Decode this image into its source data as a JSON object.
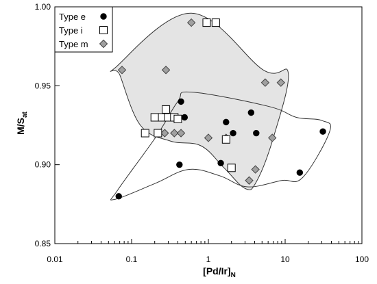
{
  "chart_data": {
    "type": "scatter",
    "title": "",
    "xlabel": {
      "main": "[Pd/Ir]",
      "sub": "N"
    },
    "ylabel": {
      "main": "M/S",
      "sub": "at"
    },
    "x_scale": "log",
    "xlim": [
      0.01,
      100
    ],
    "ylim": [
      0.85,
      1.0
    ],
    "x_ticks": [
      0.01,
      0.1,
      1,
      10,
      100
    ],
    "x_tick_labels": [
      "0.01",
      "0.1",
      "1",
      "10",
      "100"
    ],
    "y_ticks": [
      0.85,
      0.9,
      0.95,
      1.0
    ],
    "y_tick_labels": [
      "0.85",
      "0.90",
      "0.95",
      "1.00"
    ],
    "grid": false,
    "legend_position": "top-left",
    "series": [
      {
        "name": "Type e",
        "marker": "circle",
        "color": "#000000",
        "points": [
          [
            0.068,
            0.88
          ],
          [
            0.42,
            0.9
          ],
          [
            0.44,
            0.94
          ],
          [
            0.49,
            0.93
          ],
          [
            1.45,
            0.901
          ],
          [
            1.7,
            0.927
          ],
          [
            2.1,
            0.92
          ],
          [
            3.6,
            0.933
          ],
          [
            4.2,
            0.92
          ],
          [
            15.5,
            0.895
          ],
          [
            31.0,
            0.921
          ]
        ]
      },
      {
        "name": "Type i",
        "marker": "square",
        "color": "#000000",
        "points": [
          [
            0.15,
            0.92
          ],
          [
            0.2,
            0.93
          ],
          [
            0.22,
            0.92
          ],
          [
            0.25,
            0.93
          ],
          [
            0.28,
            0.935
          ],
          [
            0.3,
            0.93
          ],
          [
            0.36,
            0.93
          ],
          [
            0.4,
            0.929
          ],
          [
            0.95,
            0.99
          ],
          [
            1.25,
            0.99
          ],
          [
            1.7,
            0.916
          ],
          [
            2.0,
            0.898
          ]
        ]
      },
      {
        "name": "Type m",
        "marker": "diamond",
        "color": "#a0a0a0",
        "points": [
          [
            0.075,
            0.96
          ],
          [
            0.27,
            0.92
          ],
          [
            0.28,
            0.96
          ],
          [
            0.36,
            0.92
          ],
          [
            0.44,
            0.92
          ],
          [
            0.6,
            0.99
          ],
          [
            1.0,
            0.917
          ],
          [
            1.7,
            0.917
          ],
          [
            3.4,
            0.89
          ],
          [
            4.1,
            0.897
          ],
          [
            5.5,
            0.952
          ],
          [
            6.8,
            0.917
          ],
          [
            8.8,
            0.952
          ]
        ]
      }
    ],
    "regions": [
      {
        "label_series": "Type m",
        "fill": "#e4e4e4",
        "vertices": [
          [
            0.063,
            0.962
          ],
          [
            0.6,
            0.996
          ],
          [
            5.2,
            0.96
          ],
          [
            11.0,
            0.958
          ],
          [
            7.0,
            0.917
          ],
          [
            4.2,
            0.889
          ],
          [
            3.0,
            0.885
          ],
          [
            1.6,
            0.898
          ],
          [
            0.8,
            0.912
          ],
          [
            0.32,
            0.915
          ],
          [
            0.13,
            0.925
          ],
          [
            0.07,
            0.957
          ]
        ]
      },
      {
        "label_series": "Type e",
        "fill": "none",
        "vertices": [
          [
            0.06,
            0.878
          ],
          [
            0.2,
            0.888
          ],
          [
            0.55,
            0.897
          ],
          [
            1.4,
            0.893
          ],
          [
            3.2,
            0.886
          ],
          [
            9.0,
            0.89
          ],
          [
            17.0,
            0.892
          ],
          [
            38.0,
            0.921
          ],
          [
            30.0,
            0.928
          ],
          [
            14.0,
            0.93
          ],
          [
            6.0,
            0.937
          ],
          [
            0.6,
            0.946
          ],
          [
            0.4,
            0.94
          ],
          [
            0.21,
            0.918
          ],
          [
            0.066,
            0.884
          ]
        ]
      }
    ]
  }
}
